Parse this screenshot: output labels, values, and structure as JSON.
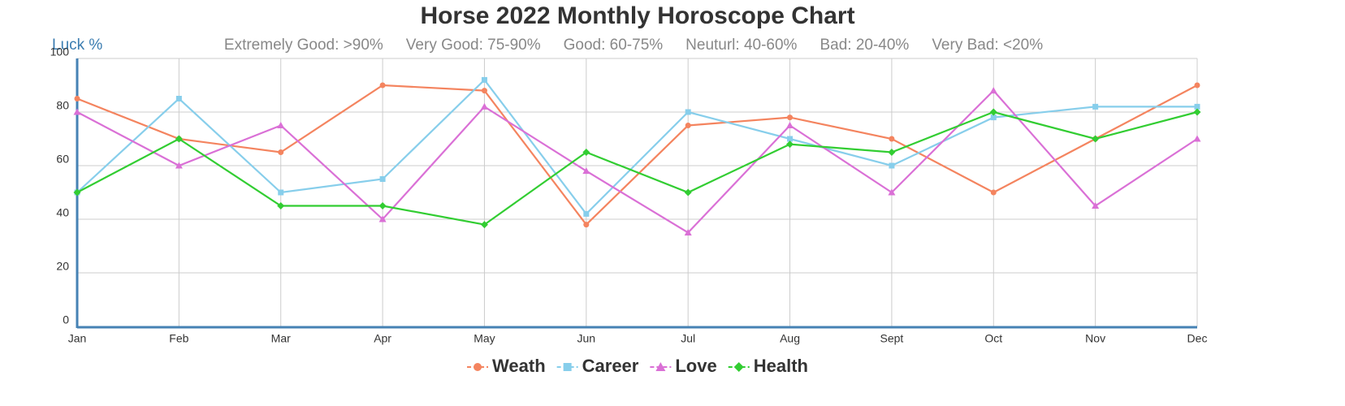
{
  "chart_data": {
    "type": "line",
    "title": "Horse 2022 Monthly Horoscope Chart",
    "y_label": "Luck %",
    "annotations": [
      "Extremely Good: >90%",
      "Very Good: 75-90%",
      "Good: 60-75%",
      "Neuturl: 40-60%",
      "Bad: 20-40%",
      "Very Bad: <20%"
    ],
    "categories": [
      "Jan",
      "Feb",
      "Mar",
      "Apr",
      "May",
      "Jun",
      "Jul",
      "Aug",
      "Sept",
      "Oct",
      "Nov",
      "Dec"
    ],
    "series": [
      {
        "name": "Weath",
        "color": "#f4845f",
        "marker": "circle",
        "values": [
          85,
          70,
          65,
          90,
          88,
          38,
          75,
          78,
          70,
          50,
          70,
          90
        ]
      },
      {
        "name": "Career",
        "color": "#87ceeb",
        "marker": "square",
        "values": [
          50,
          85,
          50,
          55,
          92,
          42,
          80,
          70,
          60,
          78,
          82,
          82
        ]
      },
      {
        "name": "Love",
        "color": "#da70d6",
        "marker": "triangle",
        "values": [
          80,
          60,
          75,
          40,
          82,
          58,
          35,
          75,
          50,
          88,
          45,
          70
        ]
      },
      {
        "name": "Health",
        "color": "#32cd32",
        "marker": "diamond",
        "values": [
          50,
          70,
          45,
          45,
          38,
          65,
          50,
          68,
          65,
          80,
          70,
          80
        ]
      }
    ],
    "ylim": [
      0,
      100
    ],
    "yticks": [
      0,
      20,
      40,
      60,
      80,
      100
    ],
    "grid": true,
    "legend": "bottom"
  }
}
